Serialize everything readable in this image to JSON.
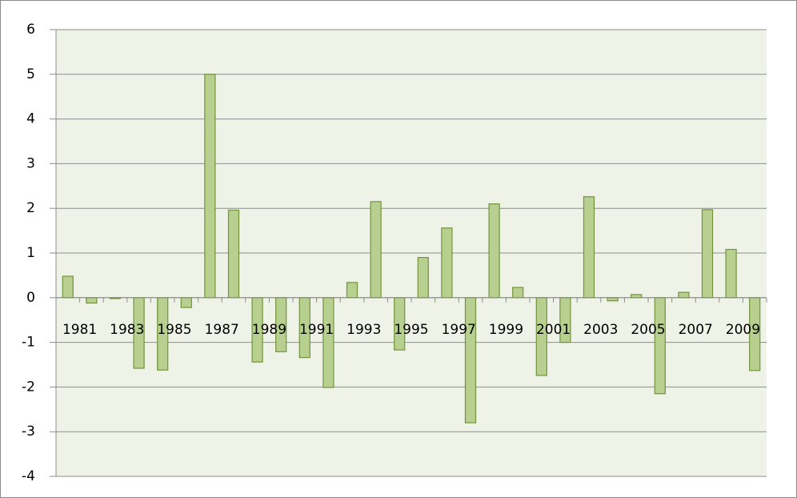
{
  "chart_data": {
    "type": "bar",
    "categories": [
      "1981",
      null,
      "1983",
      null,
      "1985",
      null,
      "1987",
      null,
      "1989",
      null,
      "1991",
      null,
      "1993",
      null,
      "1995",
      null,
      "1997",
      null,
      "1999",
      null,
      "2001",
      null,
      "2003",
      null,
      "2005",
      null,
      "2007",
      null,
      "2009",
      null
    ],
    "values": [
      0.48,
      -0.12,
      -0.02,
      -1.58,
      -1.62,
      -0.22,
      5.0,
      1.96,
      -1.44,
      -1.21,
      -1.34,
      -2.01,
      0.34,
      2.15,
      -1.17,
      0.9,
      1.56,
      -2.8,
      2.1,
      0.23,
      -1.74,
      -1.0,
      2.26,
      -0.07,
      0.07,
      -2.15,
      0.12,
      1.97,
      1.08,
      -1.63
    ],
    "color": "#b7d08f",
    "edge_color": "#72933c",
    "ylim": [
      -4,
      6
    ],
    "yticks": [
      -4,
      -3,
      -2,
      -1,
      0,
      1,
      2,
      3,
      4,
      5,
      6
    ],
    "grid": true
  }
}
